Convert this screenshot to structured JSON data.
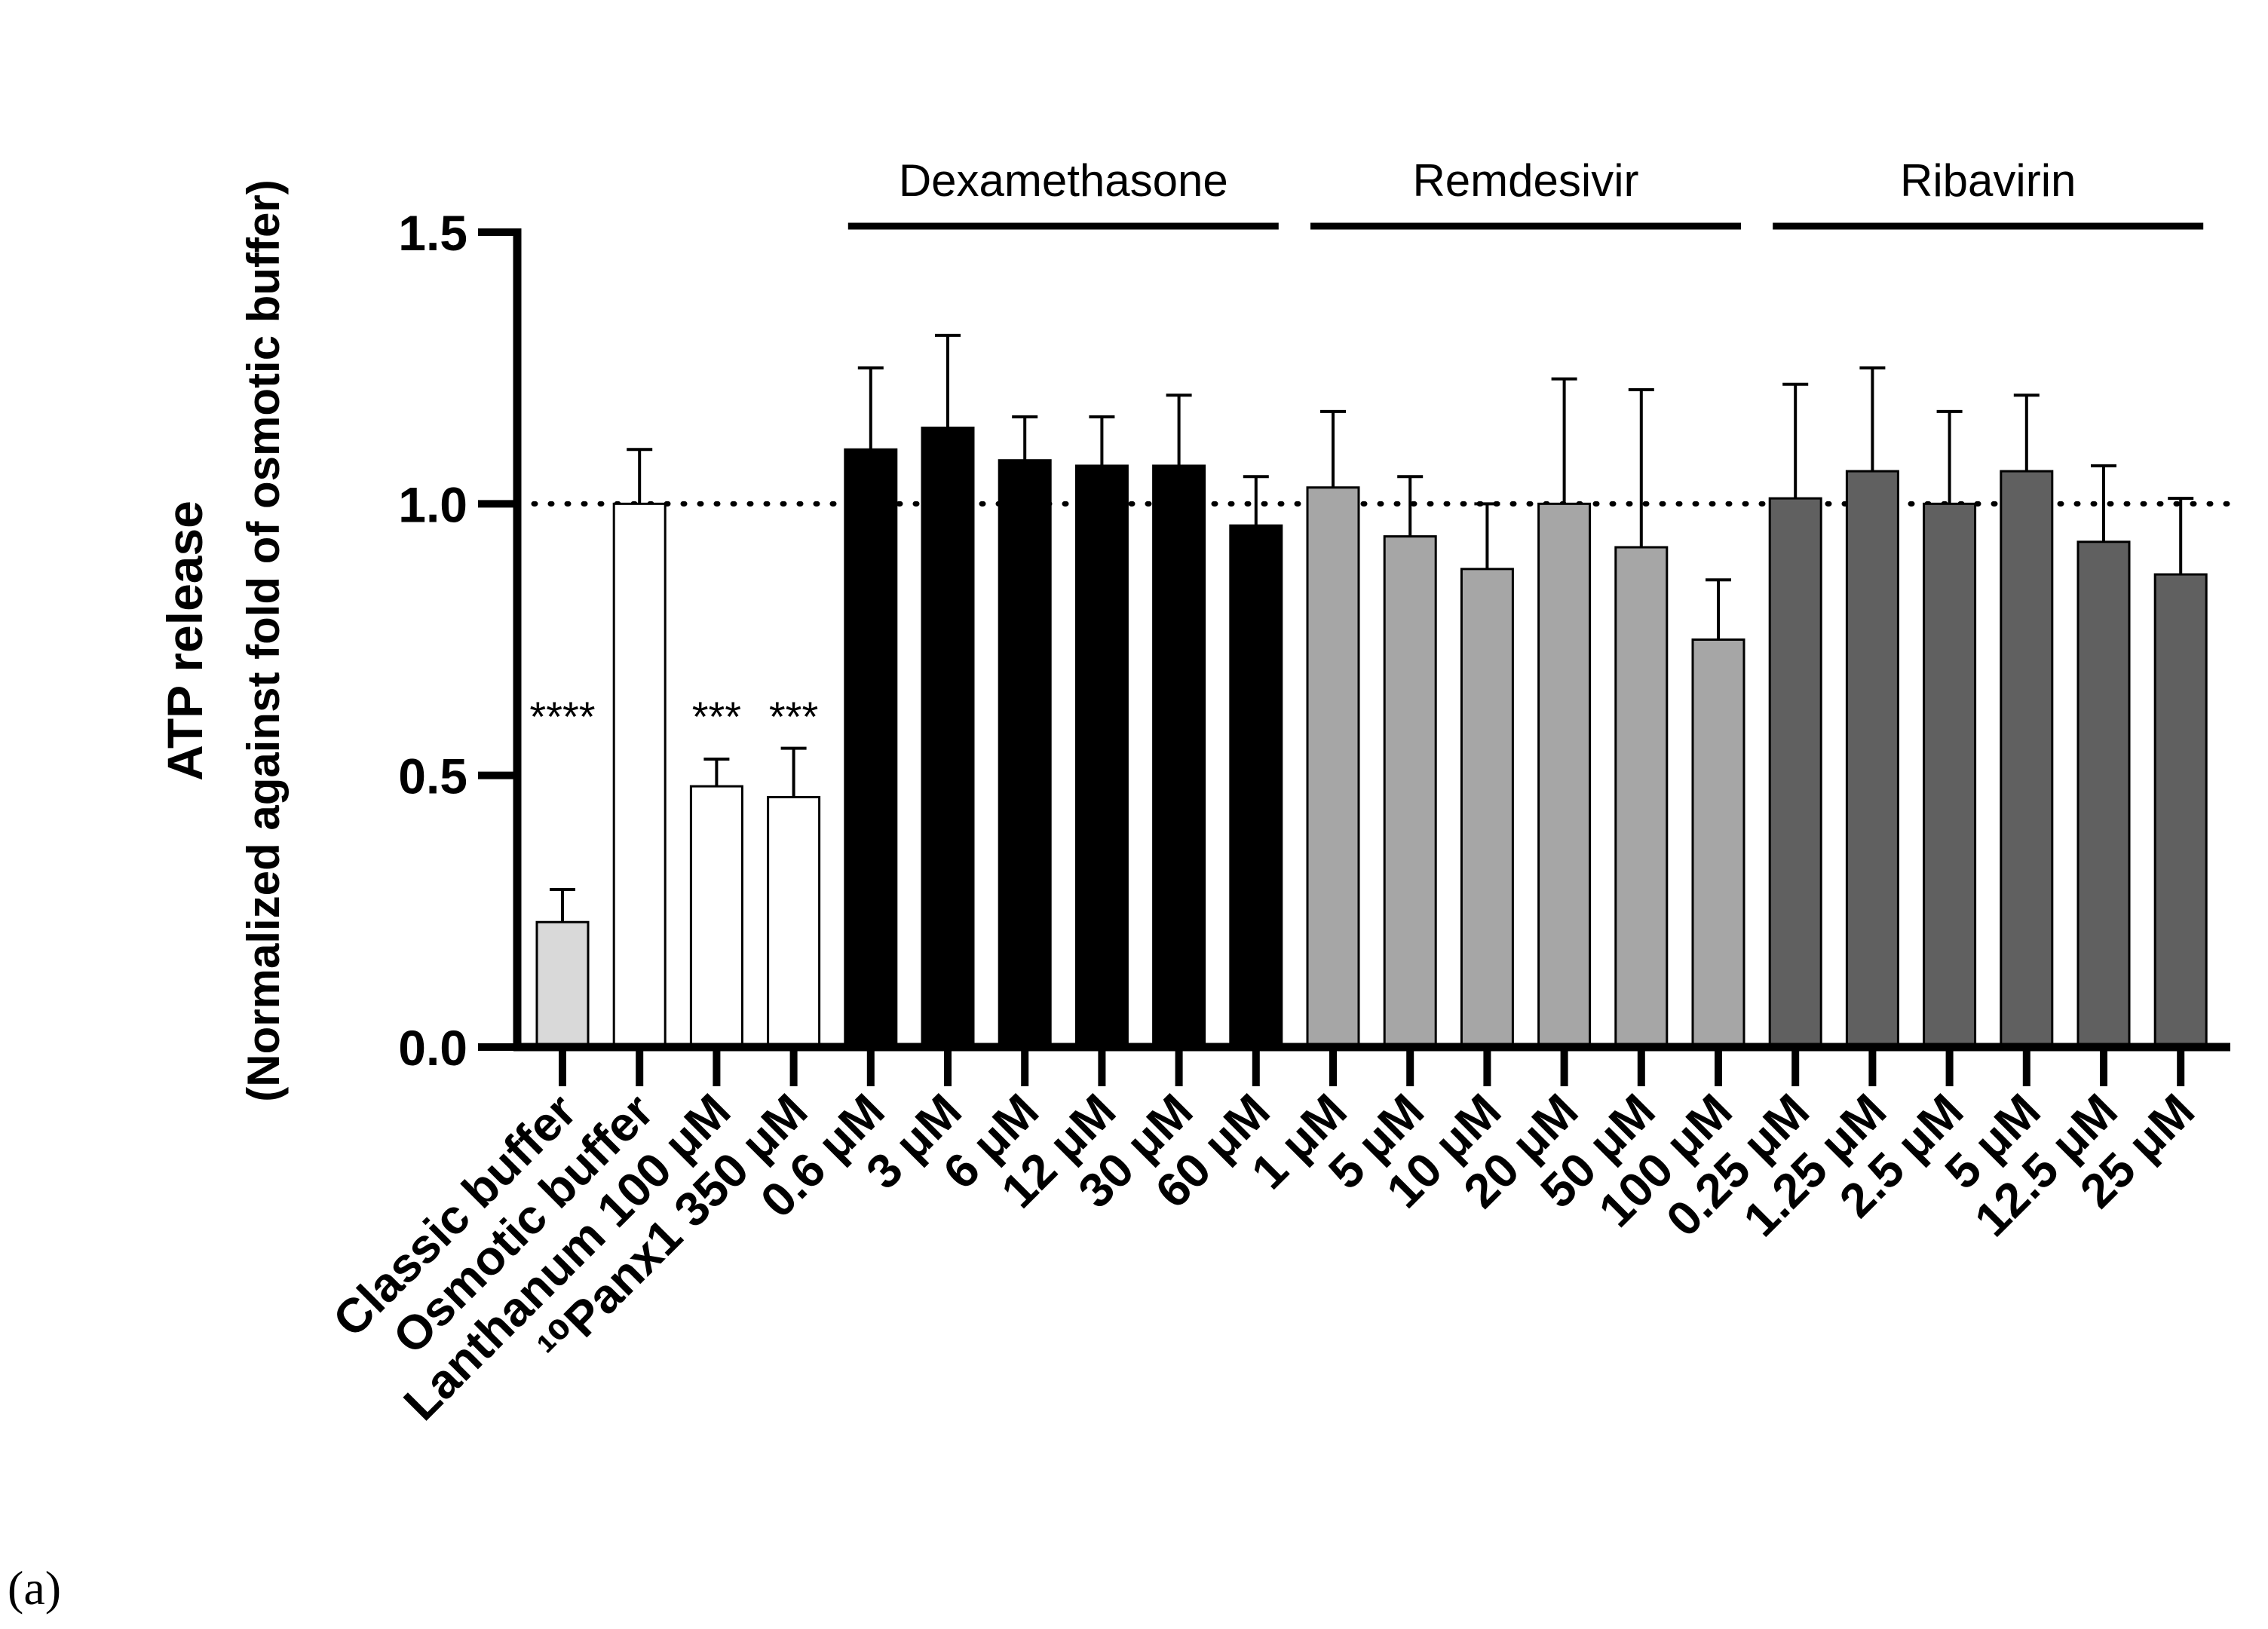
{
  "panel_label": "(a)",
  "chart_data": {
    "type": "bar",
    "title": "",
    "xlabel": "",
    "ylabel": "ATP release",
    "ylabel_sub": "(Normalized against fold of osmotic buffer)",
    "ylim": [
      0,
      1.5
    ],
    "yticks": [
      "0.0",
      "0.5",
      "1.0",
      "1.5"
    ],
    "reference_line": 1.0,
    "categories": [
      "Classic buffer",
      "Osmotic buffer",
      "Lanthanum 100 μM",
      "¹⁰Panx1 350 μM",
      "0.6 μM",
      "3 μM",
      "6 μM",
      "12 μM",
      "30 μM",
      "60 μM",
      "1 μM",
      "5 μM",
      "10 μM",
      "20 μM",
      "50 μM",
      "100 μM",
      "0.25 μM",
      "1.25 μM",
      "2.5 μM",
      "5 μM",
      "12.5 μM",
      "25 μM"
    ],
    "values": [
      0.23,
      1.0,
      0.48,
      0.46,
      1.1,
      1.14,
      1.08,
      1.07,
      1.07,
      0.96,
      1.03,
      0.94,
      0.88,
      1.0,
      0.92,
      0.75,
      1.01,
      1.06,
      1.0,
      1.06,
      0.93,
      0.87
    ],
    "errors": [
      0.06,
      0.1,
      0.05,
      0.09,
      0.15,
      0.17,
      0.08,
      0.09,
      0.13,
      0.09,
      0.14,
      0.11,
      0.12,
      0.23,
      0.29,
      0.11,
      0.21,
      0.19,
      0.17,
      0.14,
      0.14,
      0.14
    ],
    "fill_colors": [
      "#d9d9d9",
      "#ffffff",
      "#ffffff",
      "#ffffff",
      "#000000",
      "#000000",
      "#000000",
      "#000000",
      "#000000",
      "#000000",
      "#a6a6a6",
      "#a6a6a6",
      "#a6a6a6",
      "#a6a6a6",
      "#a6a6a6",
      "#a6a6a6",
      "#606060",
      "#606060",
      "#606060",
      "#606060",
      "#606060",
      "#606060"
    ],
    "significance": [
      {
        "index": 0,
        "label": "****"
      },
      {
        "index": 2,
        "label": "***"
      },
      {
        "index": 3,
        "label": "***"
      }
    ],
    "groups": [
      {
        "label": "Dexamethasone",
        "start": 4,
        "end": 9
      },
      {
        "label": "Remdesivir",
        "start": 10,
        "end": 15
      },
      {
        "label": "Ribavirin",
        "start": 16,
        "end": 21
      }
    ]
  }
}
